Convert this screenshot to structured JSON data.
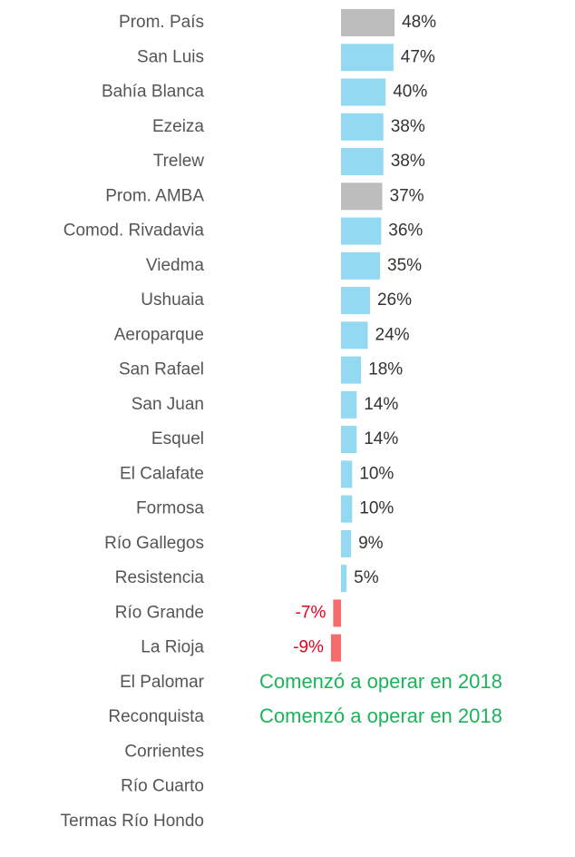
{
  "chart_data": {
    "type": "bar",
    "orientation": "horizontal",
    "categories": [
      "Prom. País",
      "San Luis",
      "Bahía Blanca",
      "Ezeiza",
      "Trelew",
      "Prom. AMBA",
      "Comod. Rivadavia",
      "Viedma",
      "Ushuaia",
      "Aeroparque",
      "San Rafael",
      "San Juan",
      "Esquel",
      "El Calafate",
      "Formosa",
      "Río Gallegos",
      "Resistencia",
      "Río Grande",
      "La Rioja",
      "El Palomar",
      "Reconquista",
      "Corrientes",
      "Río Cuarto",
      "Termas Río Hondo"
    ],
    "values": [
      48,
      47,
      40,
      38,
      38,
      37,
      36,
      35,
      26,
      24,
      18,
      14,
      14,
      10,
      10,
      9,
      5,
      -7,
      -9,
      null,
      null,
      null,
      null,
      null
    ],
    "value_labels": [
      "48%",
      "47%",
      "40%",
      "38%",
      "38%",
      "37%",
      "36%",
      "35%",
      "26%",
      "24%",
      "18%",
      "14%",
      "14%",
      "10%",
      "10%",
      "9%",
      "5%",
      "-7%",
      "-9%",
      null,
      null,
      null,
      null,
      null
    ],
    "colors": [
      "#bdbdbd",
      "#93d9f2",
      "#93d9f2",
      "#93d9f2",
      "#93d9f2",
      "#bdbdbd",
      "#93d9f2",
      "#93d9f2",
      "#93d9f2",
      "#93d9f2",
      "#93d9f2",
      "#93d9f2",
      "#93d9f2",
      "#93d9f2",
      "#93d9f2",
      "#93d9f2",
      "#93d9f2",
      "#f46b6b",
      "#f46b6b",
      null,
      null,
      null,
      null,
      null
    ],
    "notes": [
      null,
      null,
      null,
      null,
      null,
      null,
      null,
      null,
      null,
      null,
      null,
      null,
      null,
      null,
      null,
      null,
      null,
      null,
      null,
      "Comenzó a operar en 2018",
      "Comenzó a operar en 2018",
      null,
      null,
      null
    ],
    "label_color": "#333333",
    "negative_label_color": "#e8001c",
    "note_color": "#1db35a"
  }
}
